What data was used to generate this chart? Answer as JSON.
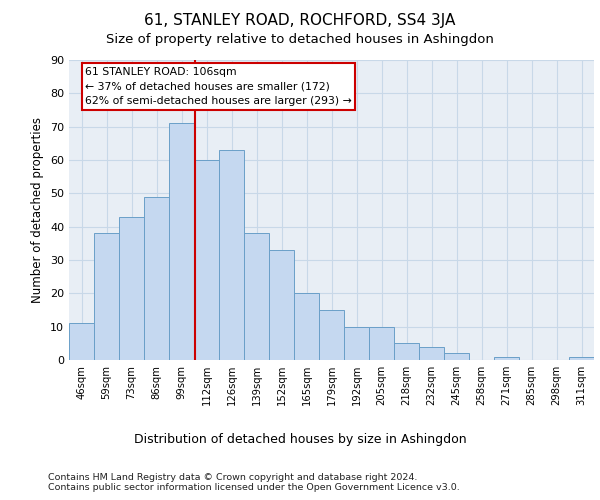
{
  "title": "61, STANLEY ROAD, ROCHFORD, SS4 3JA",
  "subtitle": "Size of property relative to detached houses in Ashingdon",
  "xlabel": "Distribution of detached houses by size in Ashingdon",
  "ylabel": "Number of detached properties",
  "categories": [
    "46sqm",
    "59sqm",
    "73sqm",
    "86sqm",
    "99sqm",
    "112sqm",
    "126sqm",
    "139sqm",
    "152sqm",
    "165sqm",
    "179sqm",
    "192sqm",
    "205sqm",
    "218sqm",
    "232sqm",
    "245sqm",
    "258sqm",
    "271sqm",
    "285sqm",
    "298sqm",
    "311sqm"
  ],
  "bar_heights": [
    11,
    38,
    43,
    49,
    71,
    60,
    63,
    38,
    33,
    20,
    15,
    10,
    10,
    5,
    4,
    2,
    0,
    1,
    0,
    0,
    1
  ],
  "bar_color": "#c5d8f0",
  "bar_edge_color": "#6a9fc8",
  "vline_x_idx": 4.5,
  "vline_color": "#cc0000",
  "annotation_text": "61 STANLEY ROAD: 106sqm\n← 37% of detached houses are smaller (172)\n62% of semi-detached houses are larger (293) →",
  "annotation_box_color": "#ffffff",
  "annotation_box_edge": "#cc0000",
  "grid_color": "#c8d8e8",
  "background_color": "#e8eef5",
  "ylim": [
    0,
    90
  ],
  "yticks": [
    0,
    10,
    20,
    30,
    40,
    50,
    60,
    70,
    80,
    90
  ],
  "footer": "Contains HM Land Registry data © Crown copyright and database right 2024.\nContains public sector information licensed under the Open Government Licence v3.0.",
  "title_fontsize": 11,
  "subtitle_fontsize": 9.5
}
